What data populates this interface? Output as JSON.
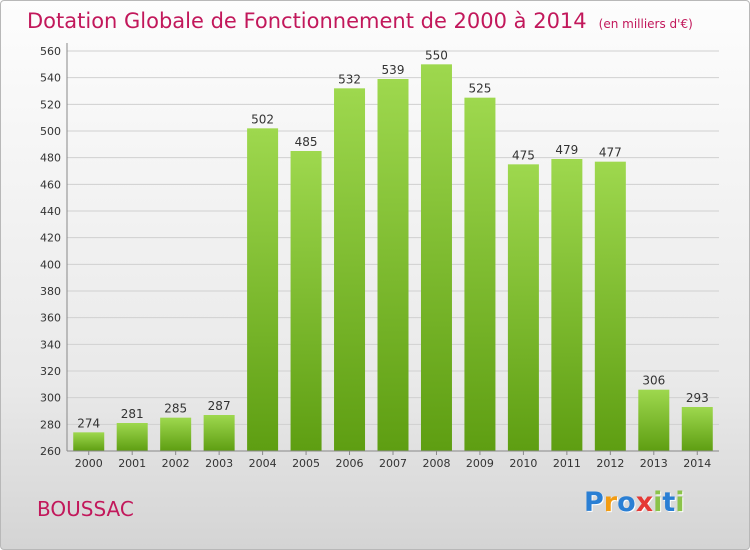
{
  "title": "Dotation Globale de Fonctionnement de 2000 à 2014",
  "subtitle": "(en milliers d'€)",
  "commune": "BOUSSAC",
  "logo": {
    "letters": [
      "P",
      "r",
      "o",
      "x",
      "i",
      "t",
      "i"
    ],
    "colors": [
      "#2a7fd4",
      "#f39c12",
      "#2a7fd4",
      "#e53935",
      "#8bc34a",
      "#2a7fd4",
      "#8bc34a"
    ]
  },
  "colors": {
    "bar_top": "#9ed84e",
    "bar_bottom": "#5e9e12",
    "grid": "#d0d0d0",
    "axis_text": "#333333",
    "title": "#c2185b"
  },
  "chart_data": {
    "type": "bar",
    "categories": [
      "2000",
      "2001",
      "2002",
      "2003",
      "2004",
      "2005",
      "2006",
      "2007",
      "2008",
      "2009",
      "2010",
      "2011",
      "2012",
      "2013",
      "2014"
    ],
    "values": [
      274,
      281,
      285,
      287,
      502,
      485,
      532,
      539,
      550,
      525,
      475,
      479,
      477,
      306,
      293
    ],
    "ylim": [
      260,
      560
    ],
    "yticks": [
      260,
      280,
      300,
      320,
      340,
      360,
      380,
      400,
      420,
      440,
      460,
      480,
      500,
      520,
      540,
      560
    ],
    "grid": true,
    "title": "Dotation Globale de Fonctionnement de 2000 à 2014",
    "xlabel": "",
    "ylabel": ""
  }
}
